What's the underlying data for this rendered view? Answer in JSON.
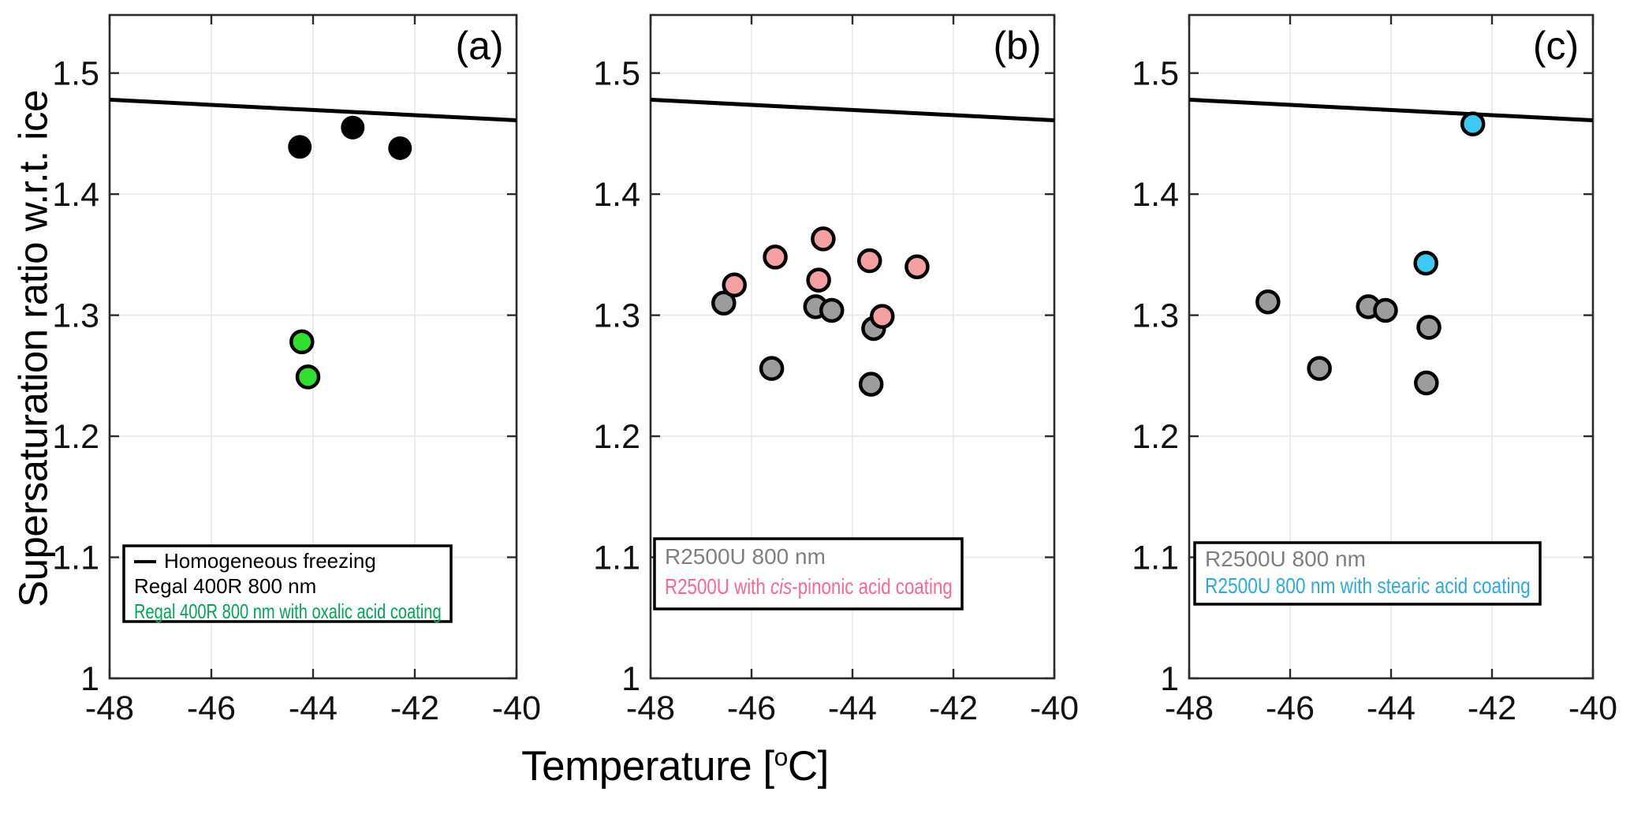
{
  "axes": {
    "ylabel": "Supersaturation ratio w.r.t. ice",
    "xlabel_prefix": "Temperature [",
    "xlabel_sup": "o",
    "xlabel_suffix": "C]",
    "xlim": [
      -48,
      -40
    ],
    "ylim": [
      1.0,
      1.548
    ],
    "xticks": [
      -48,
      -46,
      -44,
      -42,
      -40
    ],
    "xtick_labels": [
      "-48",
      "-46",
      "-44",
      "-42",
      "-40"
    ],
    "yticks": [
      1.0,
      1.1,
      1.2,
      1.3,
      1.4,
      1.5
    ],
    "ytick_labels": [
      "1",
      "1.1",
      "1.2",
      "1.3",
      "1.4",
      "1.5"
    ],
    "grid": true,
    "legend_position": "lower-left-inside"
  },
  "colors": {
    "grid": "#e7e7e7",
    "spine": "#2b2b2b",
    "tick_text": "#111111",
    "freezing_line": "#000000",
    "black_marker": "#000000",
    "green_marker": "#2fe02f",
    "gray_marker": "#9c9c9c",
    "pink_marker": "#f5a0a0",
    "blue_marker": "#3ec9f2",
    "green_text": "#00a651",
    "gray_text": "#7f7f7f",
    "pink_text": "#f9688f",
    "blue_text": "#29abe2"
  },
  "chart_data": [
    {
      "type": "scatter",
      "label": "(a)",
      "line": {
        "name": "Homogeneous freezing",
        "x": [
          -48,
          -40
        ],
        "y": [
          1.478,
          1.461
        ],
        "color": "#000000"
      },
      "series": [
        {
          "name": "Regal 400R 800 nm",
          "marker_fill": "#000000",
          "marker_stroke": "#000000",
          "points": [
            [
              -44.26,
              1.439
            ],
            [
              -43.22,
              1.455
            ],
            [
              -42.29,
              1.438
            ]
          ]
        },
        {
          "name": "Regal 400R 800 nm with oxalic acid coating",
          "marker_fill": "#2fe02f",
          "marker_stroke": "#000000",
          "points": [
            [
              -44.22,
              1.278
            ],
            [
              -44.1,
              1.249
            ]
          ]
        }
      ],
      "legend": [
        {
          "symbol": "line",
          "color": "#000000",
          "segments": [
            {
              "t": "Homogeneous freezing"
            }
          ]
        },
        {
          "color": "#000000",
          "segments": [
            {
              "t": "Regal 400R 800 nm"
            }
          ]
        },
        {
          "color": "#00a651",
          "segments": [
            {
              "t": "Regal 400R 800 nm with oxalic acid coating"
            }
          ]
        }
      ]
    },
    {
      "type": "scatter",
      "label": "(b)",
      "line": {
        "name": "Homogeneous freezing",
        "x": [
          -48,
          -40
        ],
        "y": [
          1.478,
          1.461
        ],
        "color": "#000000"
      },
      "series": [
        {
          "name": "R2500U 800 nm",
          "marker_fill": "#9c9c9c",
          "marker_stroke": "#000000",
          "points": [
            [
              -46.55,
              1.31
            ],
            [
              -45.6,
              1.256
            ],
            [
              -44.73,
              1.307
            ],
            [
              -44.41,
              1.304
            ],
            [
              -43.58,
              1.289
            ],
            [
              -43.63,
              1.243
            ]
          ]
        },
        {
          "name": "R2500U with cis-pinonic acid coating",
          "marker_fill": "#f5a0a0",
          "marker_stroke": "#000000",
          "points": [
            [
              -46.34,
              1.325
            ],
            [
              -45.53,
              1.348
            ],
            [
              -44.67,
              1.329
            ],
            [
              -44.58,
              1.363
            ],
            [
              -43.66,
              1.345
            ],
            [
              -43.41,
              1.299
            ],
            [
              -42.72,
              1.34
            ]
          ]
        }
      ],
      "legend": [
        {
          "color": "#7f7f7f",
          "segments": [
            {
              "t": "R2500U 800 nm"
            }
          ]
        },
        {
          "color": "#f9688f",
          "segments": [
            {
              "t": "R2500U with "
            },
            {
              "t": "cis",
              "italic": true
            },
            {
              "t": "-pinonic acid coating"
            }
          ]
        }
      ]
    },
    {
      "type": "scatter",
      "label": "(c)",
      "line": {
        "name": "Homogeneous freezing",
        "x": [
          -48,
          -40
        ],
        "y": [
          1.478,
          1.461
        ],
        "color": "#000000"
      },
      "series": [
        {
          "name": "R2500U 800 nm",
          "marker_fill": "#9c9c9c",
          "marker_stroke": "#000000",
          "points": [
            [
              -46.44,
              1.311
            ],
            [
              -45.42,
              1.256
            ],
            [
              -44.45,
              1.307
            ],
            [
              -44.11,
              1.304
            ],
            [
              -43.25,
              1.29
            ],
            [
              -43.3,
              1.244
            ]
          ]
        },
        {
          "name": "R2500U 800 nm with stearic acid coating",
          "marker_fill": "#3ec9f2",
          "marker_stroke": "#000000",
          "points": [
            [
              -43.31,
              1.343
            ],
            [
              -42.38,
              1.458
            ]
          ]
        }
      ],
      "legend": [
        {
          "color": "#7f7f7f",
          "segments": [
            {
              "t": "R2500U 800 nm"
            }
          ]
        },
        {
          "color": "#29abe2",
          "segments": [
            {
              "t": "R2500U 800 nm with stearic acid coating"
            }
          ]
        }
      ]
    }
  ]
}
